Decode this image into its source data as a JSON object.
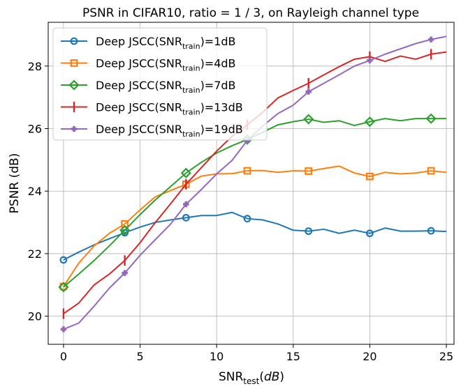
{
  "chart_data": {
    "type": "line",
    "title": "PSNR in CIFAR10, ratio = 1 / 3, on Rayleigh channel type",
    "xlabel": {
      "main": "SNR",
      "sub": "test",
      "open": "(",
      "var": "dB",
      "close": ")"
    },
    "ylabel": "PSNR (dB)",
    "xlim": [
      -1.0,
      25.5
    ],
    "ylim": [
      19.1,
      29.4
    ],
    "xticks": [
      0,
      5,
      10,
      15,
      20,
      25
    ],
    "yticks": [
      20,
      22,
      24,
      26,
      28
    ],
    "grid": true,
    "legend_position": "upper-left",
    "x": [
      0,
      1,
      2,
      3,
      4,
      5,
      6,
      7,
      8,
      9,
      10,
      11,
      12,
      13,
      14,
      15,
      16,
      17,
      18,
      19,
      20,
      21,
      22,
      23,
      24,
      25
    ],
    "marker_x": [
      0,
      4,
      8,
      12,
      16,
      20,
      24
    ],
    "series": [
      {
        "name_prefix": "Deep JSCC(SNR",
        "name_sub": "train",
        "name_suffix": ")=1dB",
        "color": "#1f77b4",
        "marker": "circle",
        "values": [
          21.8,
          22.05,
          22.28,
          22.48,
          22.67,
          22.85,
          23.0,
          23.08,
          23.15,
          23.22,
          23.22,
          23.32,
          23.12,
          23.08,
          22.95,
          22.75,
          22.72,
          22.78,
          22.65,
          22.75,
          22.65,
          22.82,
          22.72,
          22.72,
          22.73,
          22.71
        ]
      },
      {
        "name_prefix": "Deep JSCC(SNR",
        "name_sub": "train",
        "name_suffix": ")=4dB",
        "color": "#ff7f0e",
        "marker": "square",
        "values": [
          20.95,
          21.7,
          22.25,
          22.65,
          22.95,
          23.4,
          23.82,
          24.02,
          24.22,
          24.48,
          24.55,
          24.56,
          24.65,
          24.66,
          24.6,
          24.65,
          24.64,
          24.72,
          24.8,
          24.58,
          24.47,
          24.6,
          24.55,
          24.58,
          24.65,
          24.6
        ]
      },
      {
        "name_prefix": "Deep JSCC(SNR",
        "name_sub": "train",
        "name_suffix": ")=7dB",
        "color": "#2ca02c",
        "marker": "diamond",
        "values": [
          20.93,
          21.35,
          21.78,
          22.25,
          22.75,
          23.25,
          23.72,
          24.15,
          24.58,
          24.92,
          25.22,
          25.45,
          25.65,
          25.88,
          26.12,
          26.22,
          26.3,
          26.2,
          26.25,
          26.1,
          26.22,
          26.32,
          26.25,
          26.32,
          26.32,
          26.32
        ]
      },
      {
        "name_prefix": "Deep JSCC(SNR",
        "name_sub": "train",
        "name_suffix": ")=13dB",
        "color": "#d62728",
        "marker": "vline",
        "values": [
          20.08,
          20.42,
          21.0,
          21.35,
          21.78,
          22.35,
          23.0,
          23.6,
          24.22,
          24.75,
          25.28,
          25.75,
          26.12,
          26.52,
          26.98,
          27.22,
          27.45,
          27.72,
          27.98,
          28.22,
          28.3,
          28.15,
          28.32,
          28.22,
          28.38,
          28.45
        ]
      },
      {
        "name_prefix": "Deep JSCC(SNR",
        "name_sub": "train",
        "name_suffix": ")=19dB",
        "color": "#9467bd",
        "marker": "plus",
        "values": [
          19.58,
          19.78,
          20.32,
          20.9,
          21.38,
          21.95,
          22.45,
          22.95,
          23.58,
          24.05,
          24.55,
          24.98,
          25.62,
          26.08,
          26.48,
          26.75,
          27.18,
          27.45,
          27.72,
          28.0,
          28.18,
          28.38,
          28.55,
          28.72,
          28.85,
          28.95
        ]
      }
    ]
  }
}
